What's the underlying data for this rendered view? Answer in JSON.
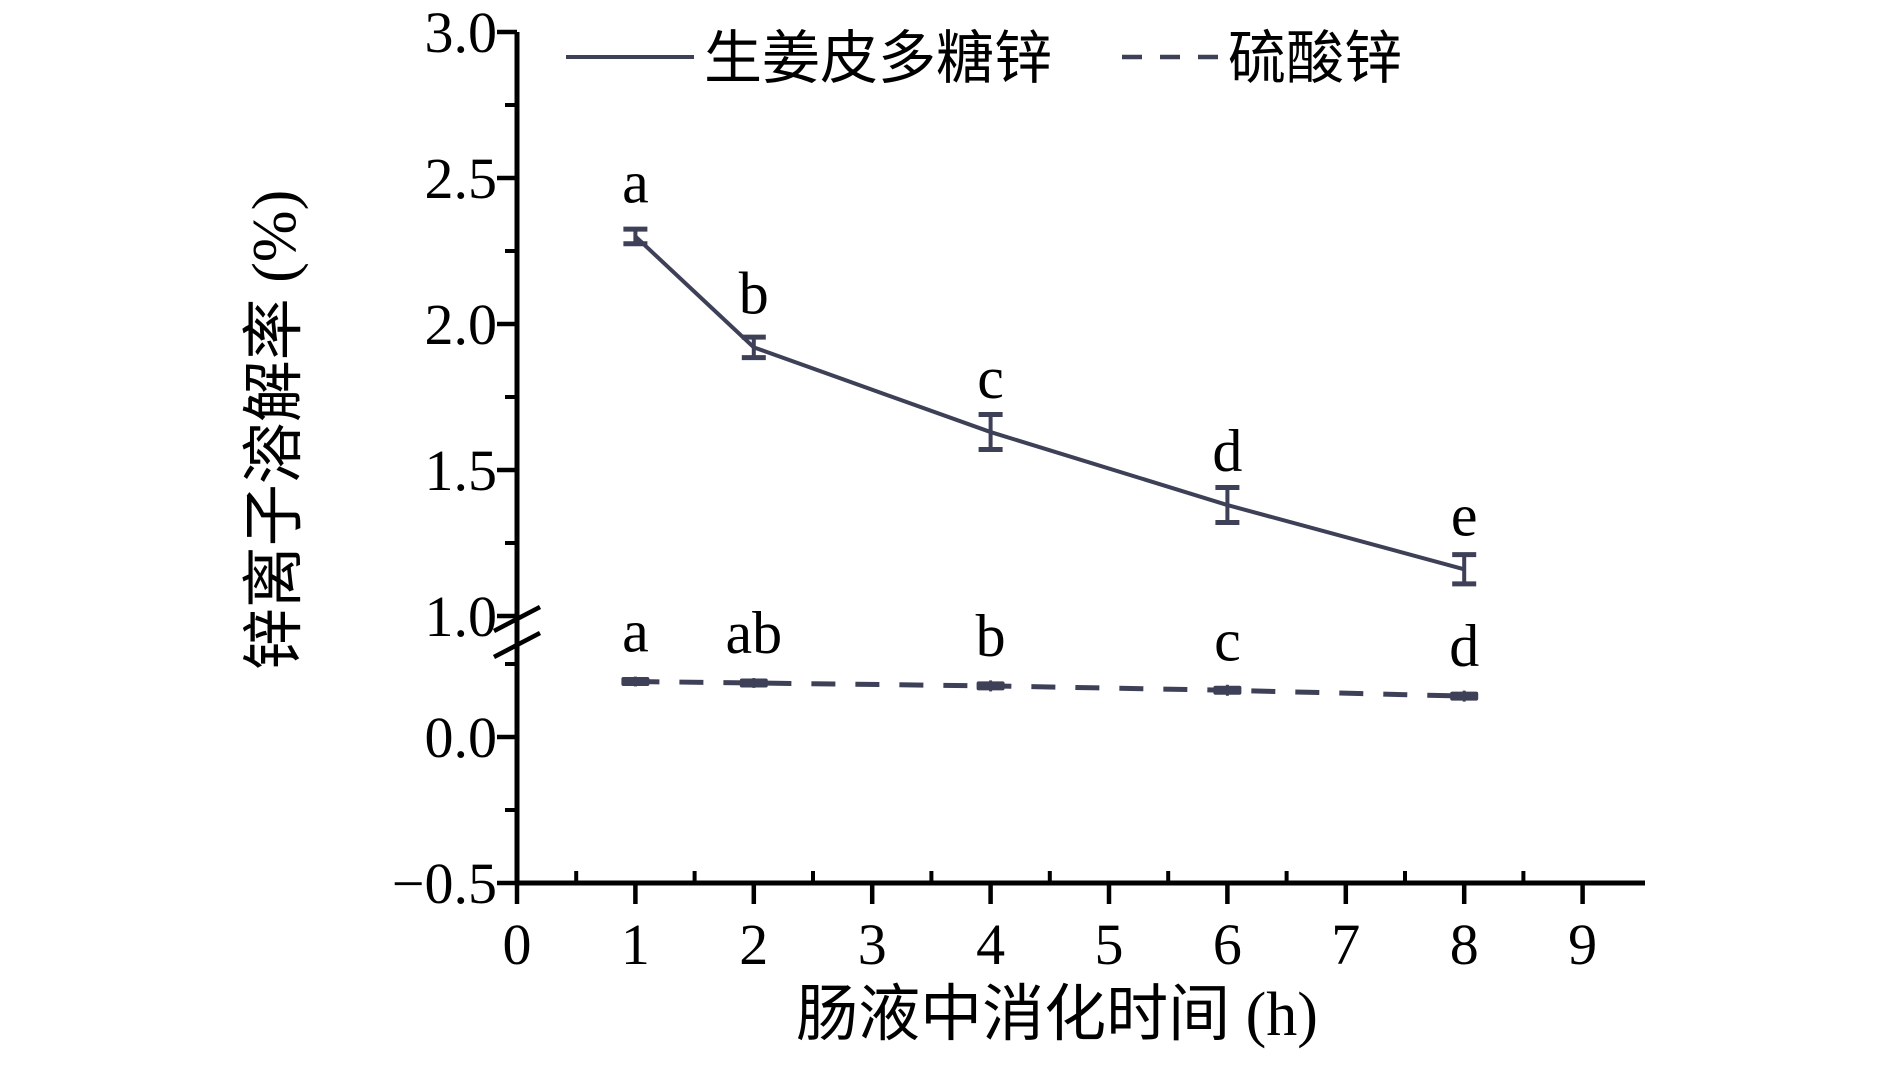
{
  "figure": {
    "background": "#ffffff"
  },
  "legend": {
    "items": [
      {
        "label": "生姜皮多糖锌",
        "line_style": "solid"
      },
      {
        "label": "硫酸锌",
        "line_style": "dashed"
      }
    ]
  },
  "chart_data": {
    "type": "line",
    "title": "",
    "xlabel": "肠液中消化时间 (h)",
    "ylabel": "锌离子溶解率 (%)",
    "grid": false,
    "legend_position": "top-inside",
    "x_ticks": [
      "0",
      "1",
      "2",
      "3",
      "4",
      "5",
      "6",
      "7",
      "8",
      "9"
    ],
    "x_tick_values": [
      0,
      1,
      2,
      3,
      4,
      5,
      6,
      7,
      8,
      9
    ],
    "x_minor_tick_values": [
      0.5,
      1.5,
      2.5,
      3.5,
      4.5,
      5.5,
      6.5,
      7.5,
      8.5
    ],
    "x_range": [
      0,
      9.5
    ],
    "y_axis": {
      "tick_labels": [
        "3.0",
        "2.5",
        "2.0",
        "1.5",
        "1.0",
        "0.0",
        "−0.5"
      ],
      "tick_values": [
        3.0,
        2.5,
        2.0,
        1.5,
        1.0,
        0.0,
        -0.5
      ],
      "minor_tick_values": [
        2.75,
        2.25,
        1.75,
        1.25,
        0.25,
        -0.25
      ],
      "break_at": 1.0,
      "upper_segment_range": [
        1.0,
        3.0
      ],
      "lower_segment_range": [
        -0.5,
        0.4
      ]
    },
    "series": [
      {
        "name": "生姜皮多糖锌",
        "line_style": "solid",
        "marker": "error-bar",
        "x": [
          1,
          2,
          4,
          6,
          8
        ],
        "values": [
          2.3,
          1.92,
          1.63,
          1.38,
          1.16
        ],
        "errors": [
          0.025,
          0.035,
          0.06,
          0.06,
          0.05
        ],
        "point_labels": [
          "a",
          "b",
          "c",
          "d",
          "e"
        ]
      },
      {
        "name": "硫酸锌",
        "line_style": "dashed",
        "marker": "square-dash",
        "x": [
          1,
          2,
          4,
          6,
          8
        ],
        "values": [
          0.19,
          0.185,
          0.175,
          0.16,
          0.14
        ],
        "errors": [
          0.01,
          0.01,
          0.012,
          0.012,
          0.012
        ],
        "point_labels": [
          "a",
          "ab",
          "b",
          "c",
          "d"
        ]
      }
    ],
    "colors": {
      "series": "#3e4057",
      "axis": "#000000",
      "text": "#000000"
    }
  }
}
